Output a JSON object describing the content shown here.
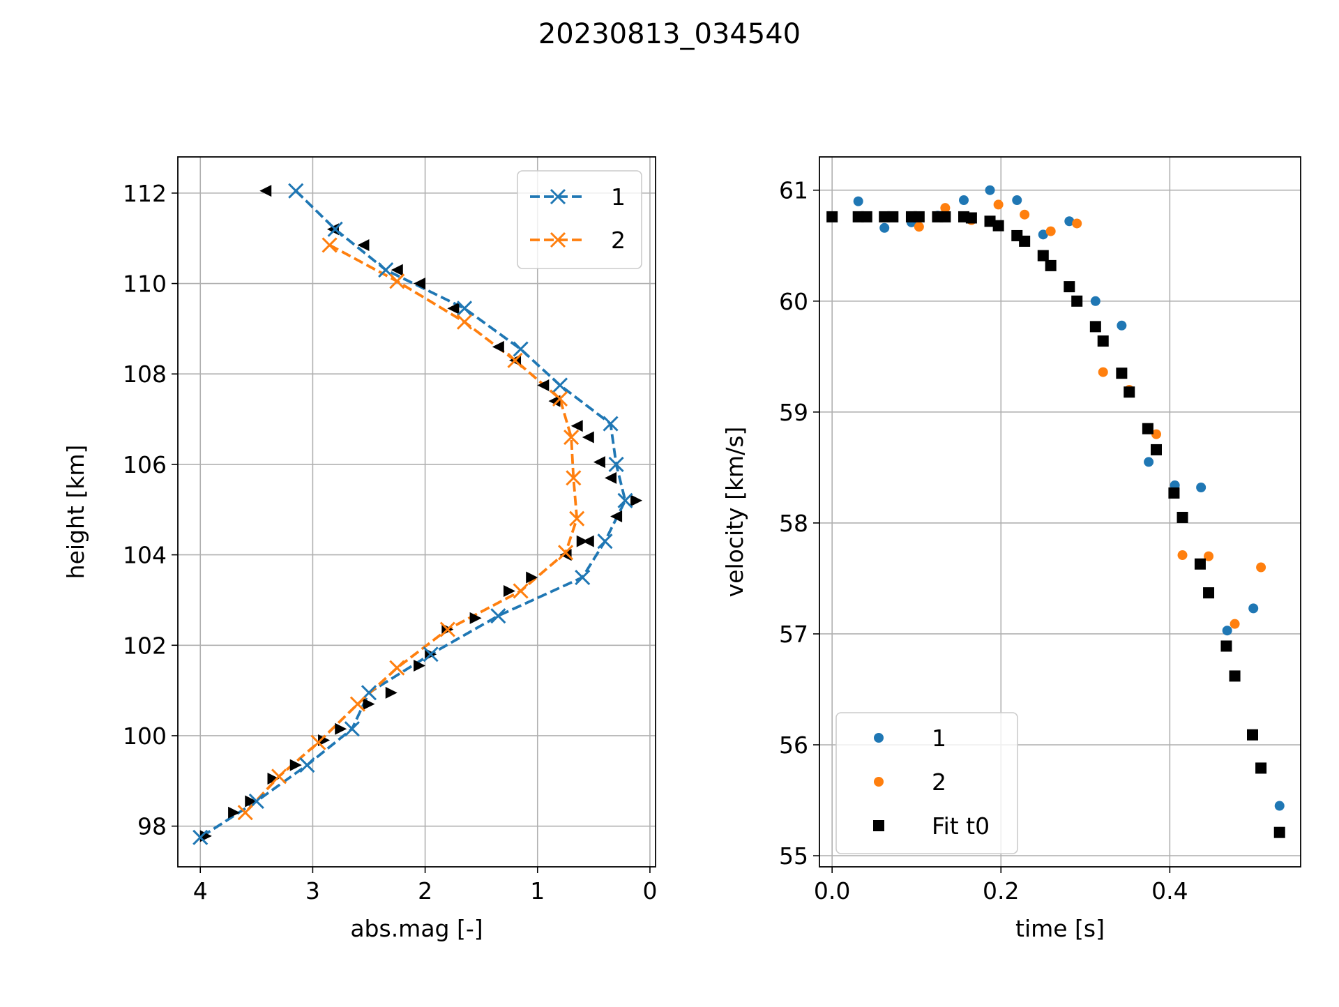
{
  "figure": {
    "title": "20230813_034540"
  },
  "colors": {
    "series1": "#1f77b4",
    "series2": "#ff7f0e",
    "markers": "#000000",
    "grid": "#b0b0b0"
  },
  "chart_data": [
    {
      "type": "line",
      "panel": "left",
      "xlabel": "abs.mag [-]",
      "ylabel": "height [km]",
      "xlim": [
        4.2,
        -0.05
      ],
      "ylim": [
        97.1,
        112.8
      ],
      "xticks": [
        4,
        3,
        2,
        1,
        0
      ],
      "xtick_labels": [
        "4",
        "3",
        "2",
        "1",
        "0"
      ],
      "yticks": [
        98,
        100,
        102,
        104,
        106,
        108,
        110,
        112
      ],
      "ytick_labels": [
        "98",
        "100",
        "102",
        "104",
        "106",
        "108",
        "110",
        "112"
      ],
      "grid": true,
      "legend_position": "upper right",
      "series": [
        {
          "name": "1",
          "style": "dashed line with x markers",
          "points": [
            [
              3.15,
              112.05
            ],
            [
              2.8,
              111.2
            ],
            [
              2.35,
              110.3
            ],
            [
              1.65,
              109.45
            ],
            [
              1.15,
              108.55
            ],
            [
              0.8,
              107.75
            ],
            [
              0.35,
              106.9
            ],
            [
              0.3,
              106.0
            ],
            [
              0.22,
              105.2
            ],
            [
              0.4,
              104.3
            ],
            [
              0.6,
              103.5
            ],
            [
              1.35,
              102.65
            ],
            [
              1.95,
              101.8
            ],
            [
              2.5,
              100.95
            ],
            [
              2.65,
              100.15
            ],
            [
              3.05,
              99.35
            ],
            [
              3.5,
              98.55
            ],
            [
              4.0,
              97.75
            ]
          ]
        },
        {
          "name": "2",
          "style": "dashed line with x markers",
          "points": [
            [
              2.85,
              110.85
            ],
            [
              2.25,
              110.05
            ],
            [
              1.65,
              109.15
            ],
            [
              1.2,
              108.3
            ],
            [
              0.8,
              107.45
            ],
            [
              0.7,
              106.6
            ],
            [
              0.68,
              105.7
            ],
            [
              0.65,
              104.8
            ],
            [
              0.75,
              104.05
            ],
            [
              1.15,
              103.2
            ],
            [
              1.8,
              102.35
            ],
            [
              2.25,
              101.5
            ],
            [
              2.6,
              100.7
            ],
            [
              2.95,
              99.85
            ],
            [
              3.3,
              99.1
            ],
            [
              3.6,
              98.3
            ]
          ]
        },
        {
          "name": "",
          "style": "black left-pointing triangle markers",
          "marker": "triangle-left",
          "points": [
            [
              3.42,
              112.05
            ],
            [
              2.82,
              111.2
            ],
            [
              2.55,
              110.85
            ],
            [
              2.25,
              110.3
            ],
            [
              2.05,
              110.0
            ],
            [
              1.75,
              109.45
            ],
            [
              1.35,
              108.6
            ],
            [
              1.2,
              108.3
            ],
            [
              0.95,
              107.75
            ],
            [
              0.85,
              107.4
            ],
            [
              0.65,
              106.85
            ],
            [
              0.55,
              106.6
            ],
            [
              0.45,
              106.05
            ],
            [
              0.35,
              105.7
            ],
            [
              0.3,
              104.85
            ],
            [
              0.55,
              104.3
            ],
            [
              0.75,
              104.0
            ]
          ]
        },
        {
          "name": "",
          "style": "black right-pointing triangle markers",
          "marker": "triangle-right",
          "points": [
            [
              0.12,
              105.2
            ],
            [
              0.6,
              104.3
            ],
            [
              1.05,
              103.5
            ],
            [
              1.25,
              103.2
            ],
            [
              1.55,
              102.6
            ],
            [
              1.8,
              102.35
            ],
            [
              2.05,
              101.55
            ],
            [
              1.95,
              101.8
            ],
            [
              2.3,
              100.95
            ],
            [
              2.5,
              100.7
            ],
            [
              2.75,
              100.15
            ],
            [
              2.9,
              99.9
            ],
            [
              3.15,
              99.35
            ],
            [
              3.35,
              99.05
            ],
            [
              3.55,
              98.55
            ],
            [
              3.7,
              98.3
            ],
            [
              3.95,
              97.78
            ]
          ]
        }
      ]
    },
    {
      "type": "scatter",
      "panel": "right",
      "xlabel": "time [s]",
      "ylabel": "velocity [km/s]",
      "xlim": [
        -0.015,
        0.555
      ],
      "ylim": [
        54.9,
        61.3
      ],
      "xticks": [
        0.0,
        0.2,
        0.4
      ],
      "xtick_labels": [
        "0.0",
        "0.2",
        "0.4"
      ],
      "yticks": [
        55,
        56,
        57,
        58,
        59,
        60,
        61
      ],
      "ytick_labels": [
        "55",
        "56",
        "57",
        "58",
        "59",
        "60",
        "61"
      ],
      "grid": true,
      "legend_position": "lower left",
      "series": [
        {
          "name": "1",
          "marker": "circle",
          "points": [
            [
              0.031,
              60.9
            ],
            [
              0.062,
              60.66
            ],
            [
              0.094,
              60.71
            ],
            [
              0.125,
              60.77
            ],
            [
              0.156,
              60.91
            ],
            [
              0.187,
              61.0
            ],
            [
              0.219,
              60.91
            ],
            [
              0.25,
              60.6
            ],
            [
              0.281,
              60.72
            ],
            [
              0.312,
              60.0
            ],
            [
              0.343,
              59.78
            ],
            [
              0.375,
              58.55
            ],
            [
              0.406,
              58.34
            ],
            [
              0.437,
              58.32
            ],
            [
              0.468,
              57.03
            ],
            [
              0.499,
              57.23
            ],
            [
              0.53,
              55.45
            ]
          ]
        },
        {
          "name": "2",
          "marker": "circle",
          "points": [
            [
              0.072,
              60.76
            ],
            [
              0.103,
              60.67
            ],
            [
              0.134,
              60.84
            ],
            [
              0.165,
              60.73
            ],
            [
              0.197,
              60.87
            ],
            [
              0.228,
              60.78
            ],
            [
              0.259,
              60.63
            ],
            [
              0.29,
              60.7
            ],
            [
              0.321,
              59.36
            ],
            [
              0.352,
              59.2
            ],
            [
              0.384,
              58.8
            ],
            [
              0.415,
              57.71
            ],
            [
              0.446,
              57.7
            ],
            [
              0.477,
              57.09
            ],
            [
              0.508,
              57.6
            ]
          ]
        },
        {
          "name": "Fit t0",
          "marker": "square",
          "points": [
            [
              0.0,
              60.76
            ],
            [
              0.031,
              60.76
            ],
            [
              0.041,
              60.76
            ],
            [
              0.062,
              60.76
            ],
            [
              0.072,
              60.76
            ],
            [
              0.094,
              60.76
            ],
            [
              0.103,
              60.76
            ],
            [
              0.125,
              60.76
            ],
            [
              0.134,
              60.76
            ],
            [
              0.156,
              60.76
            ],
            [
              0.165,
              60.75
            ],
            [
              0.187,
              60.72
            ],
            [
              0.197,
              60.68
            ],
            [
              0.219,
              60.59
            ],
            [
              0.228,
              60.54
            ],
            [
              0.25,
              60.41
            ],
            [
              0.259,
              60.32
            ],
            [
              0.281,
              60.13
            ],
            [
              0.29,
              60.0
            ],
            [
              0.312,
              59.77
            ],
            [
              0.321,
              59.64
            ],
            [
              0.343,
              59.35
            ],
            [
              0.352,
              59.18
            ],
            [
              0.374,
              58.85
            ],
            [
              0.384,
              58.66
            ],
            [
              0.405,
              58.27
            ],
            [
              0.415,
              58.05
            ],
            [
              0.436,
              57.63
            ],
            [
              0.446,
              57.37
            ],
            [
              0.467,
              56.89
            ],
            [
              0.477,
              56.62
            ],
            [
              0.498,
              56.09
            ],
            [
              0.508,
              55.79
            ],
            [
              0.53,
              55.21
            ]
          ]
        }
      ]
    }
  ]
}
